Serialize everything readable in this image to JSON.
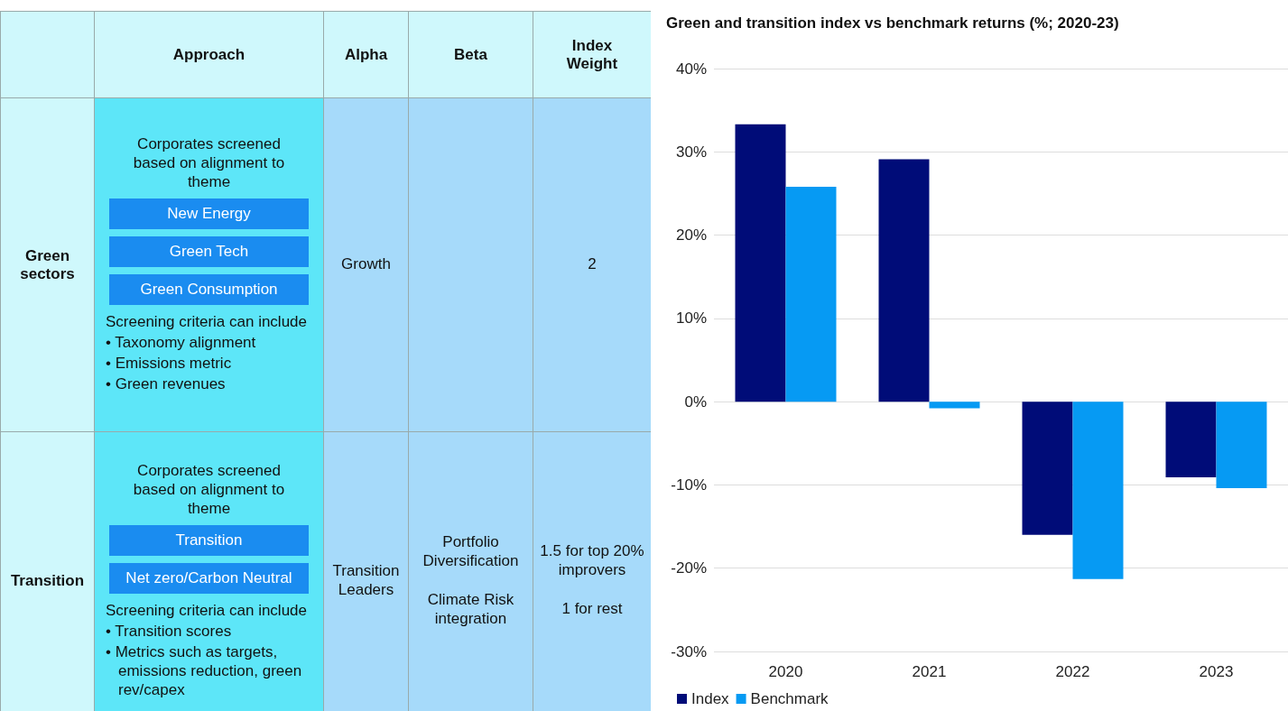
{
  "chart_data": [
    {
      "type": "other",
      "categories": [
        null,
        "Approach",
        "Alpha",
        "Beta",
        "Index Weight"
      ],
      "y_categories": [
        "Green sectors",
        "Transition"
      ],
      "cell_labels": [
        [
          [
            "Corporates screened based on alignment to theme",
            [
              "New Energy"
            ],
            [
              "Green Tech"
            ],
            [
              "Green Consumption"
            ],
            "Screening criteria can include",
            "• Taxonomy alignment",
            "• Emissions metric",
            "• Green revenues"
          ],
          [
            "Growth"
          ],
          null,
          [
            "2"
          ]
        ],
        [
          [
            "Corporates screened based on alignment to theme",
            [
              "Transition"
            ],
            [
              "Net zero/Carbon Neutral"
            ],
            "Screening criteria can include",
            "• Transition scores",
            "• Metrics such as targets, emissions reduction, green rev/capex"
          ],
          [
            "Transition Leaders"
          ],
          [
            "Portfolio Diversification",
            "Climate Risk integration"
          ],
          [
            "1.5 for top 20% improvers",
            "1 for rest"
          ]
        ]
      ]
    },
    {
      "type": "bar",
      "title": "Green and transition index vs benchmark returns (%; 2020-23)",
      "categories": [
        "2020",
        "2021",
        "2022",
        "2023"
      ],
      "series": [
        {
          "name": "Index",
          "color": "#000c78",
          "values": [
            33.3,
            29.1,
            -16.0,
            -9.1
          ]
        },
        {
          "name": "Benchmark",
          "color": "#069af3",
          "values": [
            25.8,
            -0.8,
            -21.3,
            -10.4
          ]
        }
      ],
      "ylim": [
        -30,
        40
      ],
      "yticks": [
        {
          "value": -30,
          "label": "-30%"
        },
        {
          "value": -20,
          "label": "-20%"
        },
        {
          "value": -10,
          "label": "-10%"
        },
        {
          "value": 0,
          "label": "0%"
        },
        {
          "value": 10,
          "label": "10%"
        },
        {
          "value": 20,
          "label": "20%"
        },
        {
          "value": 30,
          "label": "30%"
        },
        {
          "value": 40,
          "label": "40%"
        }
      ],
      "grid": "y",
      "legend": "bottom left"
    }
  ]
}
